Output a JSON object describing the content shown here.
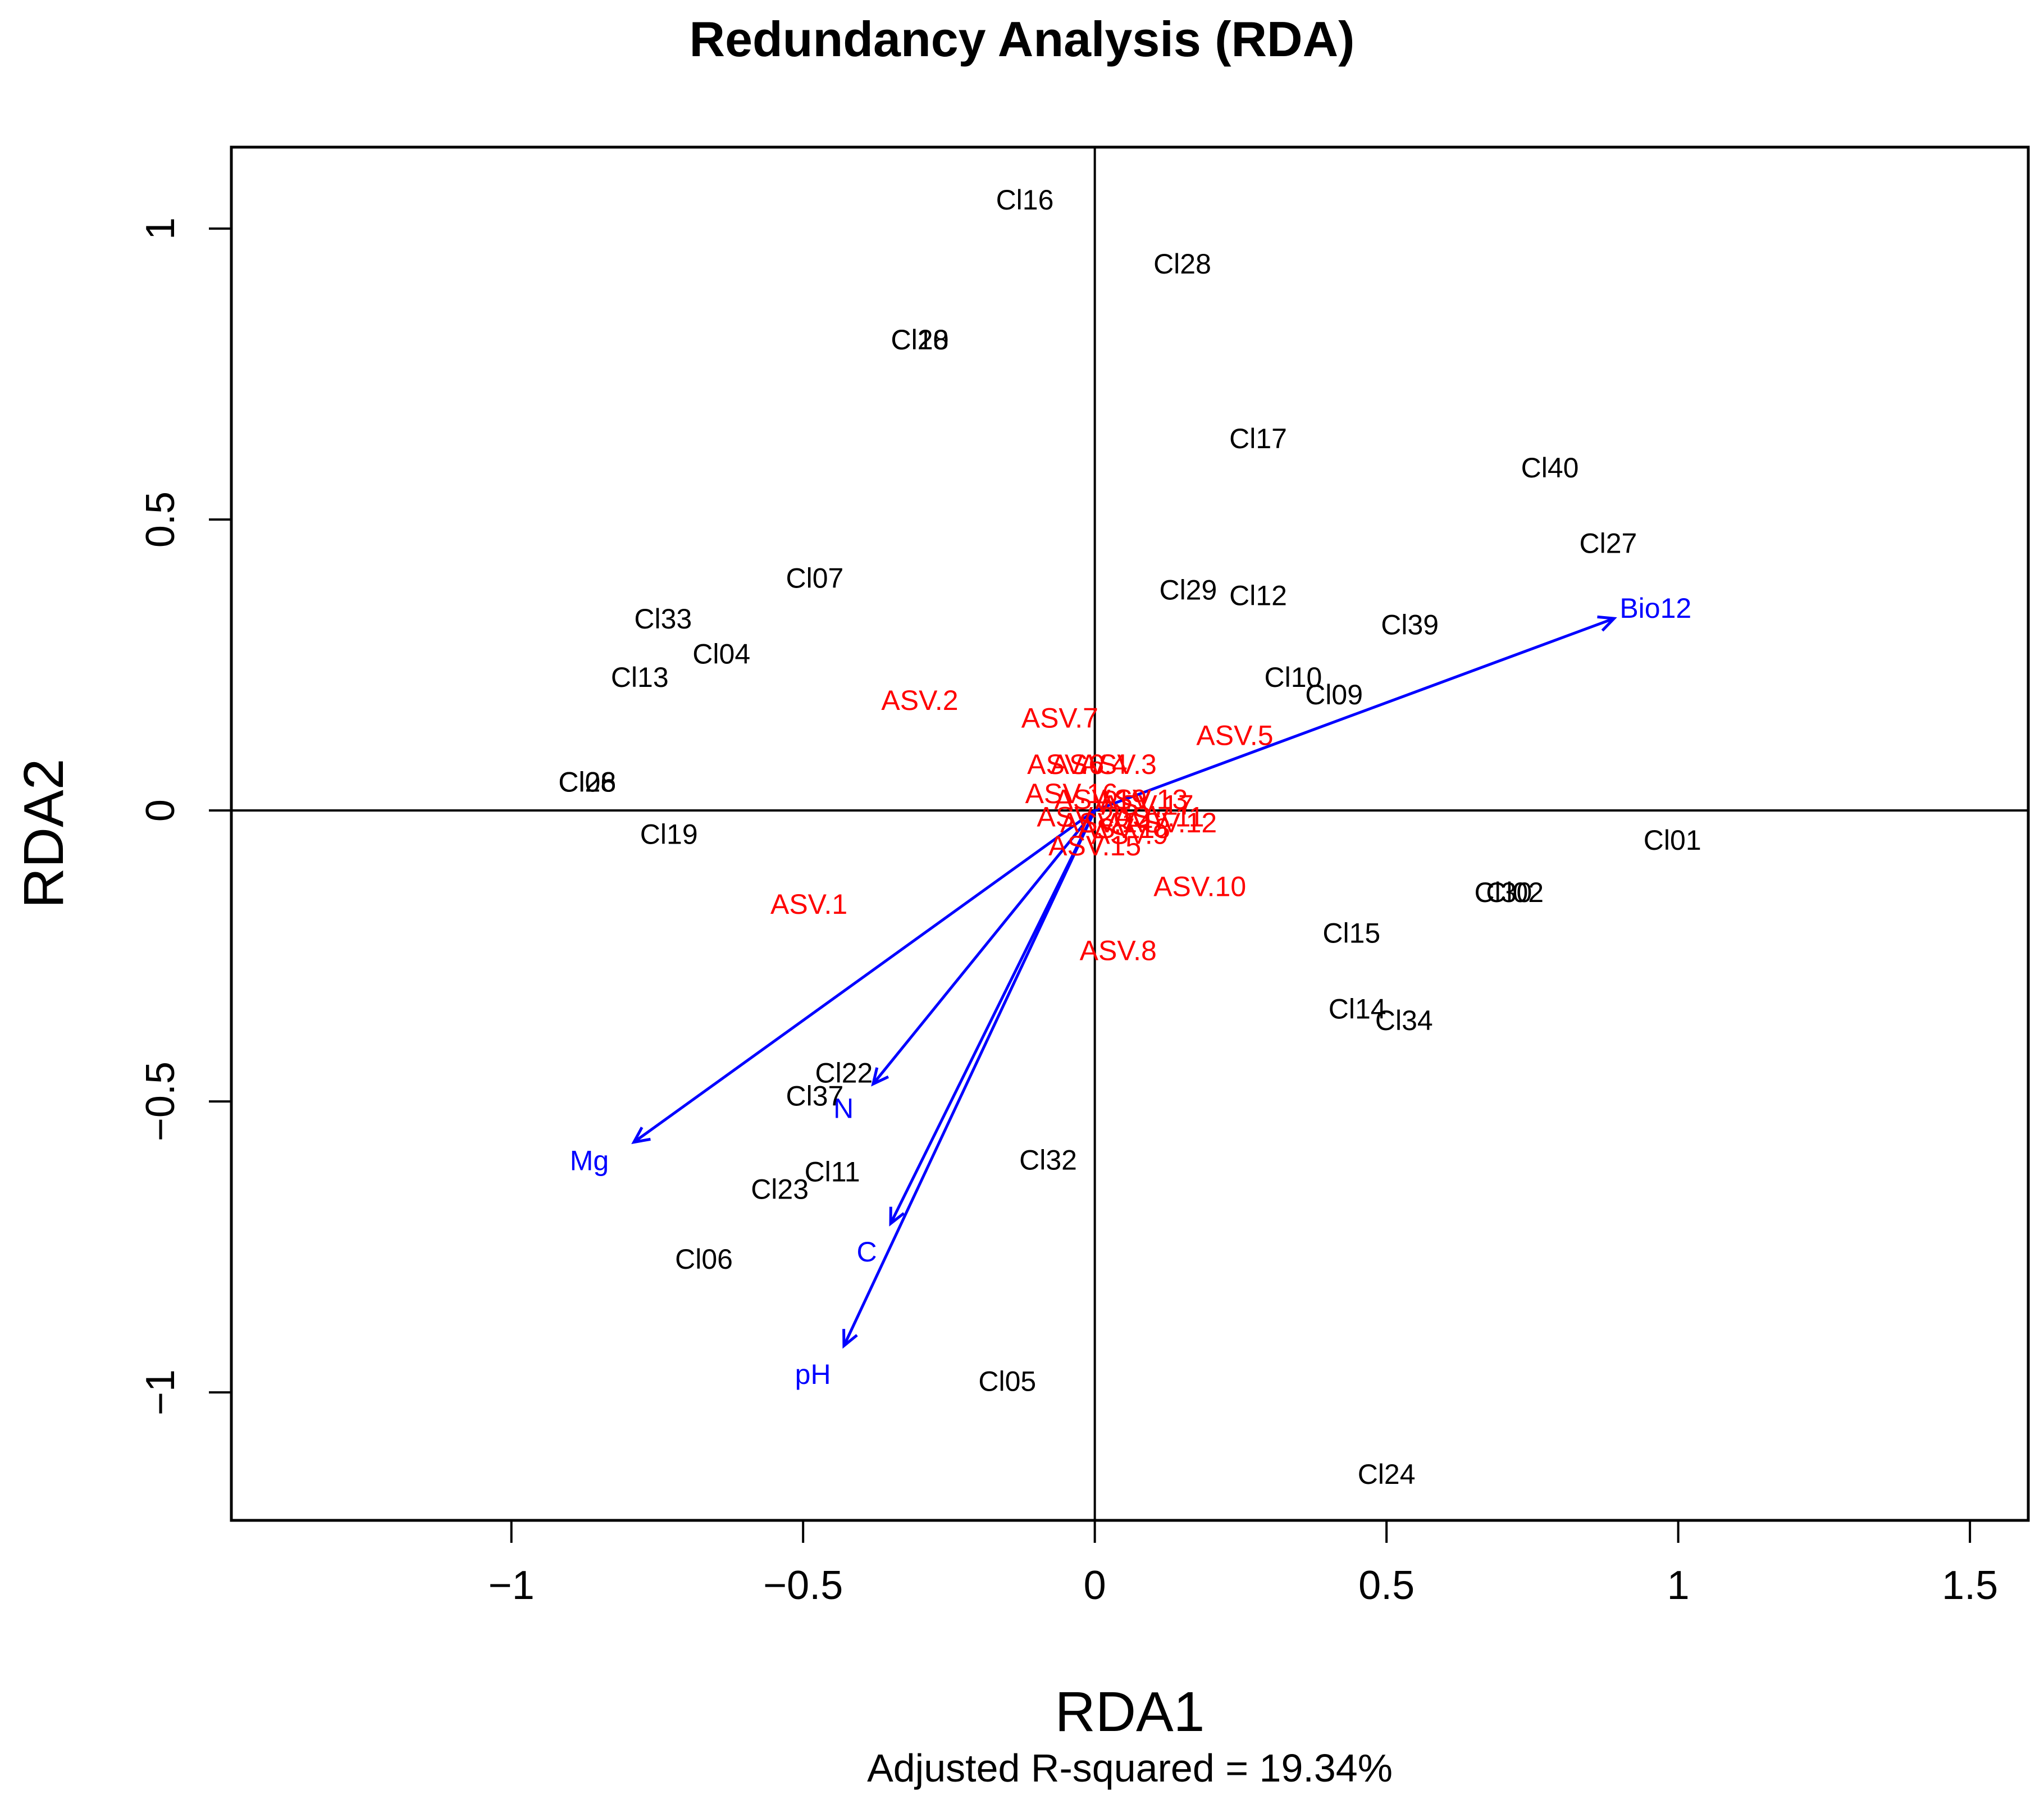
{
  "chart_data": {
    "type": "scatter",
    "title": "Redundancy Analysis (RDA)",
    "xlabel": "RDA1",
    "ylabel": "RDA2",
    "subtitle": "Adjusted R-squared = 19.34%",
    "xlim": [
      -1.48,
      1.6
    ],
    "ylim": [
      -1.22,
      1.14
    ],
    "xticks": [
      {
        "value": -1,
        "label": "−1"
      },
      {
        "value": -0.5,
        "label": "−0.5"
      },
      {
        "value": 0,
        "label": "0"
      },
      {
        "value": 0.5,
        "label": "0.5"
      },
      {
        "value": 1,
        "label": "1"
      },
      {
        "value": 1.5,
        "label": "1.5"
      }
    ],
    "yticks": [
      {
        "value": -1,
        "label": "−1"
      },
      {
        "value": -0.5,
        "label": "−0.5"
      },
      {
        "value": 0,
        "label": "0"
      },
      {
        "value": 0.5,
        "label": "0.5"
      },
      {
        "value": 1,
        "label": "1"
      }
    ],
    "colors": {
      "sites": "#000000",
      "species": "#ff0000",
      "environment": "#0000ff",
      "axes": "#000000"
    },
    "sites": [
      {
        "label": "Cl16",
        "x": -0.12,
        "y": 1.05
      },
      {
        "label": "Cl28",
        "x": 0.15,
        "y": 0.94
      },
      {
        "label": "Cl20",
        "x": -0.3,
        "y": 0.81
      },
      {
        "label": "Cl18",
        "x": -0.3,
        "y": 0.81
      },
      {
        "label": "Cl17",
        "x": 0.28,
        "y": 0.64
      },
      {
        "label": "Cl40",
        "x": 0.78,
        "y": 0.59
      },
      {
        "label": "Cl27",
        "x": 0.88,
        "y": 0.46
      },
      {
        "label": "Cl07",
        "x": -0.48,
        "y": 0.4
      },
      {
        "label": "Cl29",
        "x": 0.16,
        "y": 0.38
      },
      {
        "label": "Cl12",
        "x": 0.28,
        "y": 0.37
      },
      {
        "label": "Cl39",
        "x": 0.54,
        "y": 0.32
      },
      {
        "label": "Cl33",
        "x": -0.74,
        "y": 0.33
      },
      {
        "label": "Cl04",
        "x": -0.64,
        "y": 0.27
      },
      {
        "label": "Cl13",
        "x": -0.78,
        "y": 0.23
      },
      {
        "label": "Cl10",
        "x": 0.34,
        "y": 0.23
      },
      {
        "label": "Cl09",
        "x": 0.41,
        "y": 0.2
      },
      {
        "label": "Cl26",
        "x": -0.87,
        "y": 0.05
      },
      {
        "label": "Cl08",
        "x": -0.87,
        "y": 0.05
      },
      {
        "label": "Cl19",
        "x": -0.73,
        "y": -0.04
      },
      {
        "label": "Cl01",
        "x": 0.99,
        "y": -0.05
      },
      {
        "label": "Cl30",
        "x": 0.7,
        "y": -0.14
      },
      {
        "label": "Cl02",
        "x": 0.72,
        "y": -0.14
      },
      {
        "label": "Cl15",
        "x": 0.44,
        "y": -0.21
      },
      {
        "label": "Cl14",
        "x": 0.45,
        "y": -0.34
      },
      {
        "label": "Cl34",
        "x": 0.53,
        "y": -0.36
      },
      {
        "label": "Cl22",
        "x": -0.43,
        "y": -0.45
      },
      {
        "label": "Cl37",
        "x": -0.48,
        "y": -0.49
      },
      {
        "label": "Cl32",
        "x": -0.08,
        "y": -0.6
      },
      {
        "label": "Cl11",
        "x": -0.45,
        "y": -0.62
      },
      {
        "label": "Cl23",
        "x": -0.54,
        "y": -0.65
      },
      {
        "label": "Cl06",
        "x": -0.67,
        "y": -0.77
      },
      {
        "label": "Cl05",
        "x": -0.15,
        "y": -0.98
      },
      {
        "label": "Cl24",
        "x": 0.5,
        "y": -1.14
      }
    ],
    "species": [
      {
        "label": "ASV.2",
        "x": -0.3,
        "y": 0.19
      },
      {
        "label": "ASV.7",
        "x": -0.06,
        "y": 0.16
      },
      {
        "label": "ASV.5",
        "x": 0.24,
        "y": 0.13
      },
      {
        "label": "ASV.3",
        "x": 0.04,
        "y": 0.08
      },
      {
        "label": "ASV.4",
        "x": -0.01,
        "y": 0.08
      },
      {
        "label": "ASV.6",
        "x": -0.05,
        "y": 0.08
      },
      {
        "label": "ASV.9",
        "x": 0.06,
        "y": -0.04
      },
      {
        "label": "ASV.11",
        "x": 0.11,
        "y": -0.01
      },
      {
        "label": "ASV.12",
        "x": 0.13,
        "y": -0.02
      },
      {
        "label": "ASV.13",
        "x": 0.08,
        "y": 0.02
      },
      {
        "label": "ASV.14",
        "x": 0.02,
        "y": -0.02
      },
      {
        "label": "ASV.15",
        "x": 0.0,
        "y": -0.06
      },
      {
        "label": "ASV.16",
        "x": -0.04,
        "y": 0.03
      },
      {
        "label": "ASV.17",
        "x": 0.09,
        "y": 0.01
      },
      {
        "label": "ASV.18",
        "x": 0.05,
        "y": -0.03
      },
      {
        "label": "ASV.19",
        "x": 0.01,
        "y": 0.02
      },
      {
        "label": "ASV.20",
        "x": -0.02,
        "y": -0.01
      },
      {
        "label": "ASV.1",
        "x": -0.49,
        "y": -0.16
      },
      {
        "label": "ASV.10",
        "x": 0.18,
        "y": -0.13
      },
      {
        "label": "ASV.8",
        "x": 0.04,
        "y": -0.24
      }
    ],
    "environment": [
      {
        "label": "Bio12",
        "x": 0.89,
        "y": 0.33
      },
      {
        "label": "N",
        "x": -0.38,
        "y": -0.47
      },
      {
        "label": "Mg",
        "x": -0.79,
        "y": -0.57
      },
      {
        "label": "C",
        "x": -0.35,
        "y": -0.71
      },
      {
        "label": "pH",
        "x": -0.43,
        "y": -0.92
      }
    ]
  }
}
